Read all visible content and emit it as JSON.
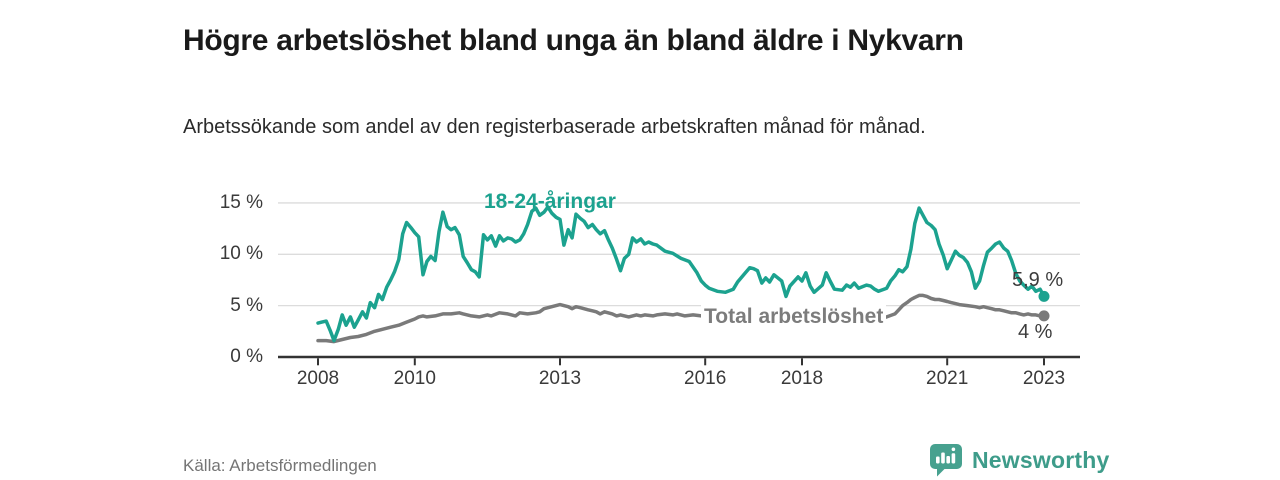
{
  "header": {
    "title": "Högre arbetslöshet bland unga än bland äldre i Nykvarn",
    "subtitle": "Arbetssökande som andel av den registerbaserade arbetskraften månad för månad."
  },
  "chart_data": {
    "type": "line",
    "title": "Högre arbetslöshet bland unga än bland äldre i Nykvarn",
    "subtitle": "Arbetssökande som andel av den registerbaserade arbetskraften månad för månad.",
    "unit": "%",
    "grid": true,
    "legend_position": "inline-labels",
    "x_axis": {
      "range": [
        2007.9,
        2023.7
      ],
      "ticks": [
        2008,
        2010,
        2013,
        2016,
        2018,
        2021,
        2023
      ],
      "tick_labels": [
        "2008",
        "2010",
        "2013",
        "2016",
        "2018",
        "2021",
        "2023"
      ]
    },
    "y_axis": {
      "range": [
        0,
        15.5
      ],
      "ticks": [
        0,
        5,
        10,
        15
      ],
      "tick_labels": [
        "0 %",
        "5 %",
        "10 %",
        "15 %"
      ]
    },
    "series": [
      {
        "name": "Total arbetslöshet",
        "color": "#7A7A7A",
        "end_value": 4.0,
        "end_label": "4 %",
        "points": [
          [
            2008.0,
            1.6
          ],
          [
            2008.17,
            1.6
          ],
          [
            2008.33,
            1.5
          ],
          [
            2008.5,
            1.7
          ],
          [
            2008.67,
            1.9
          ],
          [
            2008.83,
            2.0
          ],
          [
            2009.0,
            2.2
          ],
          [
            2009.17,
            2.5
          ],
          [
            2009.33,
            2.7
          ],
          [
            2009.5,
            2.9
          ],
          [
            2009.67,
            3.1
          ],
          [
            2009.83,
            3.4
          ],
          [
            2010.0,
            3.7
          ],
          [
            2010.08,
            3.9
          ],
          [
            2010.17,
            4.0
          ],
          [
            2010.25,
            3.9
          ],
          [
            2010.42,
            4.0
          ],
          [
            2010.58,
            4.2
          ],
          [
            2010.75,
            4.2
          ],
          [
            2010.92,
            4.3
          ],
          [
            2011.0,
            4.2
          ],
          [
            2011.17,
            4.0
          ],
          [
            2011.33,
            3.9
          ],
          [
            2011.5,
            4.1
          ],
          [
            2011.58,
            4.0
          ],
          [
            2011.75,
            4.3
          ],
          [
            2011.92,
            4.2
          ],
          [
            2012.0,
            4.1
          ],
          [
            2012.08,
            4.0
          ],
          [
            2012.17,
            4.3
          ],
          [
            2012.33,
            4.2
          ],
          [
            2012.5,
            4.3
          ],
          [
            2012.58,
            4.4
          ],
          [
            2012.67,
            4.7
          ],
          [
            2012.83,
            4.9
          ],
          [
            2012.92,
            5.0
          ],
          [
            2013.0,
            5.1
          ],
          [
            2013.17,
            4.9
          ],
          [
            2013.25,
            4.7
          ],
          [
            2013.33,
            4.9
          ],
          [
            2013.42,
            4.8
          ],
          [
            2013.58,
            4.6
          ],
          [
            2013.67,
            4.5
          ],
          [
            2013.75,
            4.4
          ],
          [
            2013.83,
            4.2
          ],
          [
            2013.92,
            4.4
          ],
          [
            2014.08,
            4.2
          ],
          [
            2014.17,
            4.0
          ],
          [
            2014.25,
            4.1
          ],
          [
            2014.42,
            3.9
          ],
          [
            2014.5,
            4.0
          ],
          [
            2014.58,
            4.1
          ],
          [
            2014.67,
            4.0
          ],
          [
            2014.75,
            4.1
          ],
          [
            2014.92,
            4.0
          ],
          [
            2015.0,
            4.1
          ],
          [
            2015.17,
            4.2
          ],
          [
            2015.33,
            4.1
          ],
          [
            2015.42,
            4.2
          ],
          [
            2015.58,
            4.0
          ],
          [
            2015.75,
            4.1
          ],
          [
            2015.92,
            4.0
          ],
          [
            2016.0,
            4.0
          ],
          [
            2016.17,
            3.9
          ],
          [
            2016.33,
            3.8
          ],
          [
            2016.58,
            3.8
          ],
          [
            2016.75,
            3.7
          ],
          [
            2017.0,
            3.8
          ],
          [
            2017.17,
            3.7
          ],
          [
            2017.42,
            3.6
          ],
          [
            2017.58,
            3.6
          ],
          [
            2017.83,
            3.5
          ],
          [
            2018.0,
            3.6
          ],
          [
            2018.17,
            3.5
          ],
          [
            2018.42,
            3.5
          ],
          [
            2018.58,
            3.4
          ],
          [
            2018.83,
            3.5
          ],
          [
            2019.0,
            3.5
          ],
          [
            2019.17,
            3.6
          ],
          [
            2019.42,
            3.6
          ],
          [
            2019.58,
            3.7
          ],
          [
            2019.75,
            3.9
          ],
          [
            2019.92,
            4.2
          ],
          [
            2020.0,
            4.6
          ],
          [
            2020.08,
            5.0
          ],
          [
            2020.17,
            5.3
          ],
          [
            2020.25,
            5.6
          ],
          [
            2020.33,
            5.8
          ],
          [
            2020.42,
            6.0
          ],
          [
            2020.5,
            6.0
          ],
          [
            2020.58,
            5.9
          ],
          [
            2020.67,
            5.7
          ],
          [
            2020.75,
            5.6
          ],
          [
            2020.83,
            5.6
          ],
          [
            2020.92,
            5.5
          ],
          [
            2021.0,
            5.4
          ],
          [
            2021.08,
            5.3
          ],
          [
            2021.17,
            5.2
          ],
          [
            2021.25,
            5.1
          ],
          [
            2021.42,
            5.0
          ],
          [
            2021.58,
            4.9
          ],
          [
            2021.67,
            4.8
          ],
          [
            2021.75,
            4.9
          ],
          [
            2021.83,
            4.8
          ],
          [
            2021.92,
            4.7
          ],
          [
            2022.0,
            4.6
          ],
          [
            2022.08,
            4.6
          ],
          [
            2022.17,
            4.5
          ],
          [
            2022.25,
            4.4
          ],
          [
            2022.33,
            4.3
          ],
          [
            2022.42,
            4.3
          ],
          [
            2022.5,
            4.2
          ],
          [
            2022.58,
            4.1
          ],
          [
            2022.67,
            4.2
          ],
          [
            2022.75,
            4.1
          ],
          [
            2022.83,
            4.1
          ],
          [
            2022.92,
            4.0
          ],
          [
            2023.0,
            4.0
          ]
        ]
      },
      {
        "name": "18-24-åringar",
        "color": "#1CA28F",
        "end_value": 5.9,
        "end_label": "5,9 %",
        "points": [
          [
            2008.0,
            3.3
          ],
          [
            2008.08,
            3.4
          ],
          [
            2008.17,
            3.5
          ],
          [
            2008.25,
            2.6
          ],
          [
            2008.33,
            1.6
          ],
          [
            2008.42,
            2.7
          ],
          [
            2008.5,
            4.1
          ],
          [
            2008.58,
            3.1
          ],
          [
            2008.67,
            3.9
          ],
          [
            2008.75,
            2.9
          ],
          [
            2008.83,
            3.6
          ],
          [
            2008.92,
            4.4
          ],
          [
            2009.0,
            3.8
          ],
          [
            2009.08,
            5.3
          ],
          [
            2009.17,
            4.8
          ],
          [
            2009.25,
            6.1
          ],
          [
            2009.33,
            5.6
          ],
          [
            2009.42,
            6.8
          ],
          [
            2009.5,
            7.5
          ],
          [
            2009.58,
            8.3
          ],
          [
            2009.67,
            9.5
          ],
          [
            2009.75,
            12.0
          ],
          [
            2009.83,
            13.1
          ],
          [
            2009.92,
            12.6
          ],
          [
            2010.0,
            12.1
          ],
          [
            2010.08,
            11.7
          ],
          [
            2010.17,
            8.0
          ],
          [
            2010.25,
            9.3
          ],
          [
            2010.33,
            9.8
          ],
          [
            2010.42,
            9.4
          ],
          [
            2010.5,
            12.2
          ],
          [
            2010.58,
            14.1
          ],
          [
            2010.67,
            12.7
          ],
          [
            2010.75,
            12.4
          ],
          [
            2010.83,
            12.6
          ],
          [
            2010.92,
            11.9
          ],
          [
            2011.0,
            9.8
          ],
          [
            2011.08,
            9.2
          ],
          [
            2011.17,
            8.5
          ],
          [
            2011.25,
            8.3
          ],
          [
            2011.33,
            7.8
          ],
          [
            2011.42,
            11.9
          ],
          [
            2011.5,
            11.4
          ],
          [
            2011.58,
            11.8
          ],
          [
            2011.67,
            10.8
          ],
          [
            2011.75,
            11.8
          ],
          [
            2011.83,
            11.3
          ],
          [
            2011.92,
            11.6
          ],
          [
            2012.0,
            11.5
          ],
          [
            2012.08,
            11.2
          ],
          [
            2012.17,
            11.4
          ],
          [
            2012.25,
            12.0
          ],
          [
            2012.33,
            12.9
          ],
          [
            2012.42,
            14.2
          ],
          [
            2012.5,
            14.5
          ],
          [
            2012.58,
            13.8
          ],
          [
            2012.67,
            14.1
          ],
          [
            2012.75,
            14.6
          ],
          [
            2012.83,
            14.0
          ],
          [
            2012.92,
            13.6
          ],
          [
            2013.0,
            13.4
          ],
          [
            2013.08,
            10.9
          ],
          [
            2013.17,
            12.4
          ],
          [
            2013.25,
            11.6
          ],
          [
            2013.33,
            13.9
          ],
          [
            2013.42,
            13.5
          ],
          [
            2013.5,
            13.2
          ],
          [
            2013.58,
            12.6
          ],
          [
            2013.67,
            12.9
          ],
          [
            2013.75,
            12.4
          ],
          [
            2013.83,
            12.0
          ],
          [
            2013.92,
            12.3
          ],
          [
            2014.0,
            11.4
          ],
          [
            2014.08,
            10.6
          ],
          [
            2014.17,
            9.5
          ],
          [
            2014.25,
            8.4
          ],
          [
            2014.33,
            9.6
          ],
          [
            2014.42,
            10.0
          ],
          [
            2014.5,
            11.6
          ],
          [
            2014.58,
            11.2
          ],
          [
            2014.67,
            11.5
          ],
          [
            2014.75,
            11.0
          ],
          [
            2014.83,
            11.2
          ],
          [
            2014.92,
            11.0
          ],
          [
            2015.0,
            10.9
          ],
          [
            2015.17,
            10.3
          ],
          [
            2015.33,
            10.1
          ],
          [
            2015.5,
            9.6
          ],
          [
            2015.67,
            9.3
          ],
          [
            2015.83,
            8.2
          ],
          [
            2015.92,
            7.4
          ],
          [
            2016.0,
            7.0
          ],
          [
            2016.08,
            6.7
          ],
          [
            2016.25,
            6.4
          ],
          [
            2016.42,
            6.3
          ],
          [
            2016.58,
            6.6
          ],
          [
            2016.67,
            7.3
          ],
          [
            2016.83,
            8.2
          ],
          [
            2016.92,
            8.7
          ],
          [
            2017.0,
            8.6
          ],
          [
            2017.08,
            8.4
          ],
          [
            2017.17,
            7.2
          ],
          [
            2017.25,
            7.7
          ],
          [
            2017.33,
            7.3
          ],
          [
            2017.42,
            8.0
          ],
          [
            2017.58,
            7.4
          ],
          [
            2017.67,
            5.9
          ],
          [
            2017.75,
            6.9
          ],
          [
            2017.92,
            7.8
          ],
          [
            2018.0,
            7.4
          ],
          [
            2018.08,
            8.2
          ],
          [
            2018.17,
            6.9
          ],
          [
            2018.25,
            6.3
          ],
          [
            2018.42,
            7.0
          ],
          [
            2018.5,
            8.2
          ],
          [
            2018.58,
            7.4
          ],
          [
            2018.67,
            6.6
          ],
          [
            2018.83,
            6.5
          ],
          [
            2018.92,
            7.0
          ],
          [
            2019.0,
            6.8
          ],
          [
            2019.08,
            7.2
          ],
          [
            2019.17,
            6.7
          ],
          [
            2019.33,
            7.0
          ],
          [
            2019.42,
            6.9
          ],
          [
            2019.5,
            6.6
          ],
          [
            2019.58,
            6.4
          ],
          [
            2019.75,
            6.7
          ],
          [
            2019.83,
            7.4
          ],
          [
            2019.92,
            7.9
          ],
          [
            2020.0,
            8.5
          ],
          [
            2020.08,
            8.3
          ],
          [
            2020.17,
            8.8
          ],
          [
            2020.25,
            10.5
          ],
          [
            2020.33,
            13.0
          ],
          [
            2020.42,
            14.5
          ],
          [
            2020.5,
            13.8
          ],
          [
            2020.58,
            13.1
          ],
          [
            2020.67,
            12.8
          ],
          [
            2020.75,
            12.4
          ],
          [
            2020.83,
            11.0
          ],
          [
            2020.92,
            9.9
          ],
          [
            2021.0,
            8.6
          ],
          [
            2021.08,
            9.4
          ],
          [
            2021.17,
            10.3
          ],
          [
            2021.25,
            9.9
          ],
          [
            2021.33,
            9.7
          ],
          [
            2021.42,
            9.2
          ],
          [
            2021.5,
            8.3
          ],
          [
            2021.58,
            6.7
          ],
          [
            2021.67,
            7.4
          ],
          [
            2021.75,
            8.9
          ],
          [
            2021.83,
            10.2
          ],
          [
            2021.92,
            10.6
          ],
          [
            2022.0,
            11.0
          ],
          [
            2022.08,
            11.2
          ],
          [
            2022.17,
            10.6
          ],
          [
            2022.25,
            10.3
          ],
          [
            2022.33,
            9.4
          ],
          [
            2022.42,
            8.1
          ],
          [
            2022.5,
            7.4
          ],
          [
            2022.58,
            7.0
          ],
          [
            2022.67,
            6.6
          ],
          [
            2022.75,
            6.9
          ],
          [
            2022.83,
            6.4
          ],
          [
            2022.92,
            6.6
          ],
          [
            2023.0,
            5.9
          ]
        ]
      }
    ],
    "annotations": {
      "young_label": "18-24-åringar",
      "total_label": "Total arbetslöshet",
      "young_end_label": "5,9 %",
      "total_end_label": "4 %"
    }
  },
  "colors": {
    "young_line": "#1CA28F",
    "total_line": "#7A7A7A",
    "gridline": "#DCDCDC",
    "axis": "#333333",
    "brand_teal": "#3E9C8A"
  },
  "footer": {
    "source": "Källa: Arbetsförmedlingen",
    "brand": "Newsworthy"
  }
}
